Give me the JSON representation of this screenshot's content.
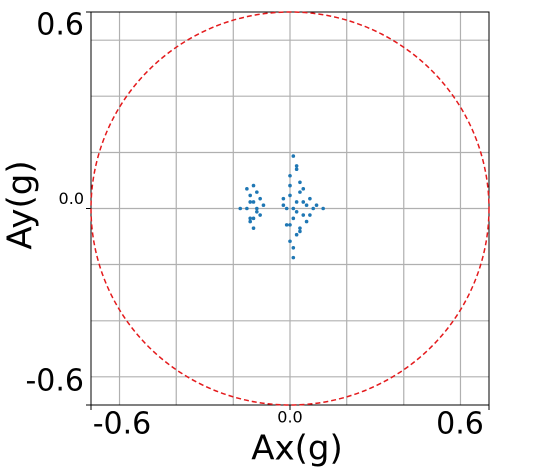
{
  "chart_data": {
    "type": "scatter",
    "xlabel": "Ax(g)",
    "ylabel": "Ay(g)",
    "xlim": [
      -0.6,
      0.6
    ],
    "ylim": [
      -0.6,
      0.6
    ],
    "xticks": [
      {
        "value": -0.6,
        "label": "-0.6"
      },
      {
        "value": 0,
        "label": "0.0"
      },
      0.6
    ],
    "yticks": [
      {
        "value": -0.6,
        "label": "-0.6"
      },
      {
        "value": 0,
        "label": "0.0"
      },
      0.6
    ],
    "xgrid": [
      -0.514,
      -0.343,
      -0.171,
      0,
      0.171,
      0.343,
      0.514
    ],
    "ygrid": [
      -0.514,
      -0.343,
      -0.171,
      0,
      0.171,
      0.343,
      0.514
    ],
    "grid": true,
    "circle": {
      "radius": 0.6,
      "color": "#e41a1c"
    },
    "series": [
      {
        "color": "#1f77b4",
        "x": [
          -0.13,
          -0.12,
          -0.11,
          -0.1,
          -0.09,
          -0.12,
          -0.11,
          -0.1,
          -0.13,
          -0.09,
          -0.11,
          -0.12,
          -0.1,
          -0.08,
          -0.12,
          -0.11,
          -0.02,
          -0.01,
          0.0,
          0.01,
          0.02,
          0.03,
          0.04,
          0.0,
          0.01,
          0.02,
          0.03,
          -0.01,
          0.0,
          0.01,
          0.02,
          0.03,
          0.04,
          0.05,
          0.06,
          0.07,
          0.08,
          0.05,
          0.06,
          0.02,
          0.01,
          0.0,
          0.03,
          -0.02,
          0.04,
          0.01,
          0.02,
          0.0,
          -0.15,
          0.1
        ],
        "values": [
          0.06,
          0.04,
          0.02,
          0.0,
          -0.02,
          -0.04,
          -0.06,
          0.05,
          0.0,
          0.03,
          -0.03,
          0.02,
          -0.01,
          0.01,
          -0.03,
          0.07,
          0.03,
          -0.05,
          0.1,
          0.16,
          0.12,
          0.05,
          -0.02,
          -0.1,
          -0.15,
          -0.08,
          0.08,
          0.0,
          0.04,
          -0.03,
          0.02,
          -0.06,
          0.06,
          0.01,
          -0.02,
          0.0,
          0.01,
          -0.04,
          0.03,
          0.13,
          -0.12,
          0.07,
          -0.07,
          0.01,
          0.02,
          0.0,
          -0.01,
          -0.05,
          0.0,
          0.0
        ]
      }
    ]
  }
}
